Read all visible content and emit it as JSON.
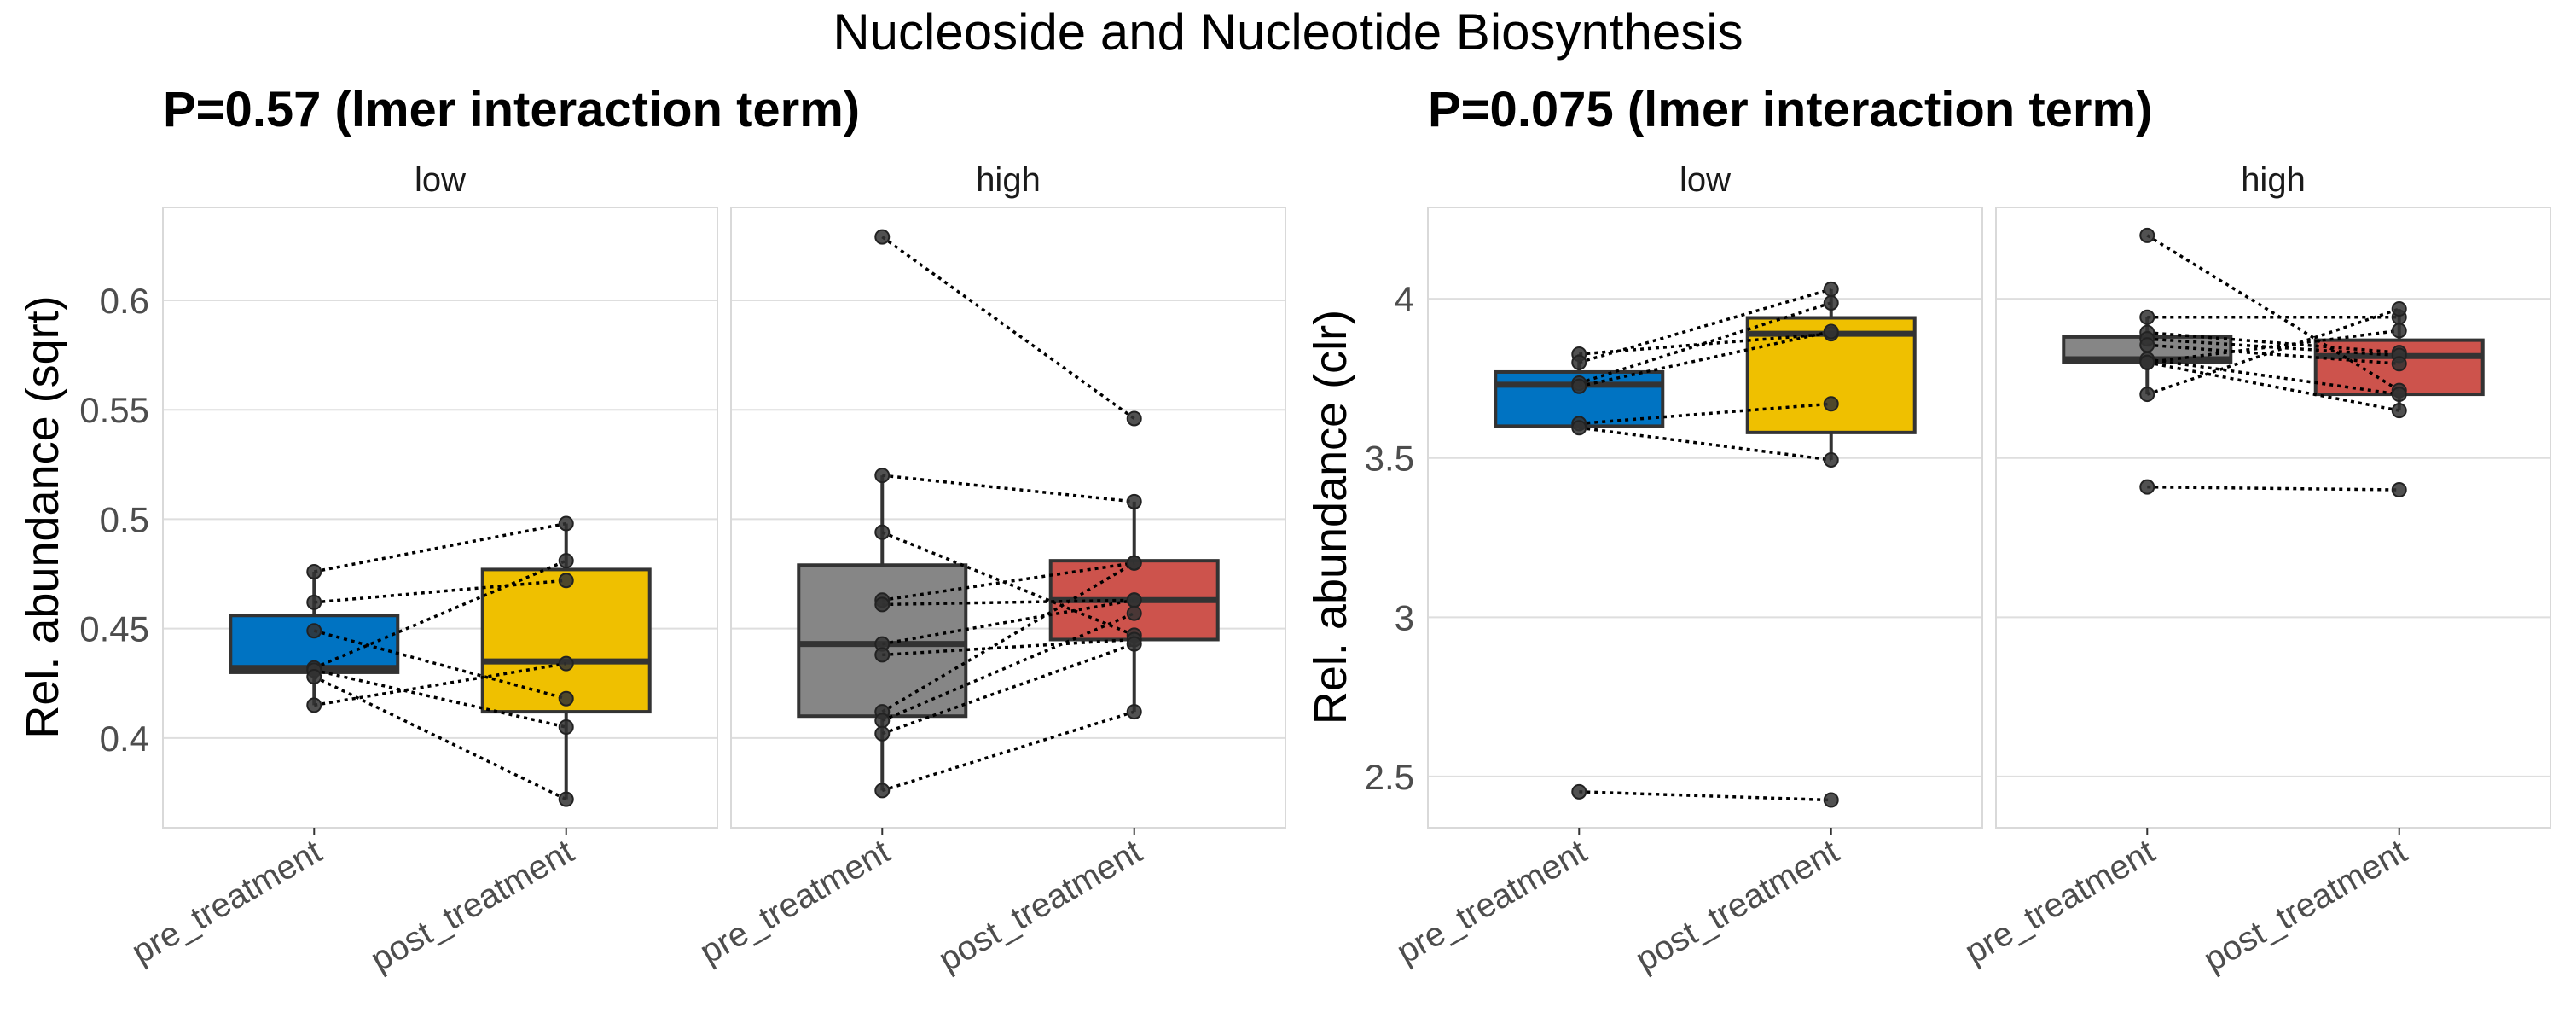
{
  "figure_title": "Nucleoside and Nucleotide Biosynthesis",
  "chart_data": [
    {
      "type": "boxplot",
      "title": "P=0.57 (lmer interaction term)",
      "ylabel": "Rel. abundance (sqrt)",
      "xlabel": "",
      "ylim": [
        0.359,
        0.6425
      ],
      "yticks": [
        0.4,
        0.45,
        0.5,
        0.55,
        0.6
      ],
      "ytick_labels": [
        "0.4",
        "0.45",
        "0.5",
        "0.55",
        "0.6"
      ],
      "grid": true,
      "categories": [
        "pre_treatment",
        "post_treatment"
      ],
      "facets": [
        {
          "label": "low",
          "colors": [
            "#0073C2",
            "#EFC000"
          ],
          "boxes": [
            {
              "category": "pre_treatment",
              "whisker_low": 0.415,
              "q1": 0.43,
              "median": 0.432,
              "q3": 0.456,
              "whisker_high": 0.476
            },
            {
              "category": "post_treatment",
              "whisker_low": 0.372,
              "q1": 0.412,
              "median": 0.435,
              "q3": 0.477,
              "whisker_high": 0.498
            }
          ],
          "pairs": [
            {
              "pre": 0.476,
              "post": 0.498
            },
            {
              "pre": 0.462,
              "post": 0.472
            },
            {
              "pre": 0.449,
              "post": 0.418
            },
            {
              "pre": 0.432,
              "post": 0.481
            },
            {
              "pre": 0.431,
              "post": 0.405
            },
            {
              "pre": 0.428,
              "post": 0.372
            },
            {
              "pre": 0.415,
              "post": 0.434
            }
          ]
        },
        {
          "label": "high",
          "colors": [
            "#868686",
            "#CD534C"
          ],
          "boxes": [
            {
              "category": "pre_treatment",
              "whisker_low": 0.376,
              "q1": 0.41,
              "median": 0.443,
              "q3": 0.479,
              "whisker_high": 0.52
            },
            {
              "category": "post_treatment",
              "whisker_low": 0.412,
              "q1": 0.445,
              "median": 0.463,
              "q3": 0.481,
              "whisker_high": 0.508
            }
          ],
          "pairs": [
            {
              "pre": 0.629,
              "post": 0.546
            },
            {
              "pre": 0.52,
              "post": 0.508
            },
            {
              "pre": 0.494,
              "post": 0.447
            },
            {
              "pre": 0.463,
              "post": 0.48
            },
            {
              "pre": 0.461,
              "post": 0.463
            },
            {
              "pre": 0.443,
              "post": 0.463
            },
            {
              "pre": 0.438,
              "post": 0.445
            },
            {
              "pre": 0.412,
              "post": 0.48
            },
            {
              "pre": 0.408,
              "post": 0.457
            },
            {
              "pre": 0.402,
              "post": 0.443
            },
            {
              "pre": 0.376,
              "post": 0.412
            }
          ]
        }
      ]
    },
    {
      "type": "boxplot",
      "title": "P=0.075 (lmer interaction term)",
      "ylabel": "Rel. abundance (clr)",
      "xlabel": "",
      "ylim": [
        2.339,
        4.287
      ],
      "yticks": [
        2.5,
        3,
        3.5,
        4
      ],
      "ytick_labels": [
        "2.5",
        "3",
        "3.5",
        "4"
      ],
      "grid": true,
      "categories": [
        "pre_treatment",
        "post_treatment"
      ],
      "facets": [
        {
          "label": "low",
          "colors": [
            "#0073C2",
            "#EFC000"
          ],
          "boxes": [
            {
              "category": "pre_treatment",
              "whisker_low": 3.595,
              "q1": 3.6,
              "median": 3.73,
              "q3": 3.77,
              "whisker_high": 3.826
            },
            {
              "category": "post_treatment",
              "whisker_low": 3.494,
              "q1": 3.58,
              "median": 3.89,
              "q3": 3.94,
              "whisker_high": 4.03
            }
          ],
          "pairs": [
            {
              "pre": 3.826,
              "post": 3.89
            },
            {
              "pre": 3.8,
              "post": 4.03
            },
            {
              "pre": 3.735,
              "post": 3.987
            },
            {
              "pre": 3.725,
              "post": 3.897
            },
            {
              "pre": 3.608,
              "post": 3.67
            },
            {
              "pre": 3.595,
              "post": 3.494
            },
            {
              "pre": 2.452,
              "post": 2.426
            }
          ]
        },
        {
          "label": "high",
          "colors": [
            "#868686",
            "#CD534C"
          ],
          "boxes": [
            {
              "category": "pre_treatment",
              "whisker_low": 3.7,
              "q1": 3.8,
              "median": 3.81,
              "q3": 3.88,
              "whisker_high": 3.942
            },
            {
              "category": "post_treatment",
              "whisker_low": 3.649,
              "q1": 3.7,
              "median": 3.82,
              "q3": 3.87,
              "whisker_high": 3.968
            }
          ],
          "pairs": [
            {
              "pre": 4.199,
              "post": 3.712
            },
            {
              "pre": 3.942,
              "post": 3.942
            },
            {
              "pre": 3.894,
              "post": 3.831
            },
            {
              "pre": 3.874,
              "post": 3.822
            },
            {
              "pre": 3.855,
              "post": 3.796
            },
            {
              "pre": 3.81,
              "post": 3.7
            },
            {
              "pre": 3.8,
              "post": 3.649
            },
            {
              "pre": 3.8,
              "post": 3.9
            },
            {
              "pre": 3.7,
              "post": 3.968
            },
            {
              "pre": 3.409,
              "post": 3.4
            }
          ]
        }
      ]
    }
  ]
}
